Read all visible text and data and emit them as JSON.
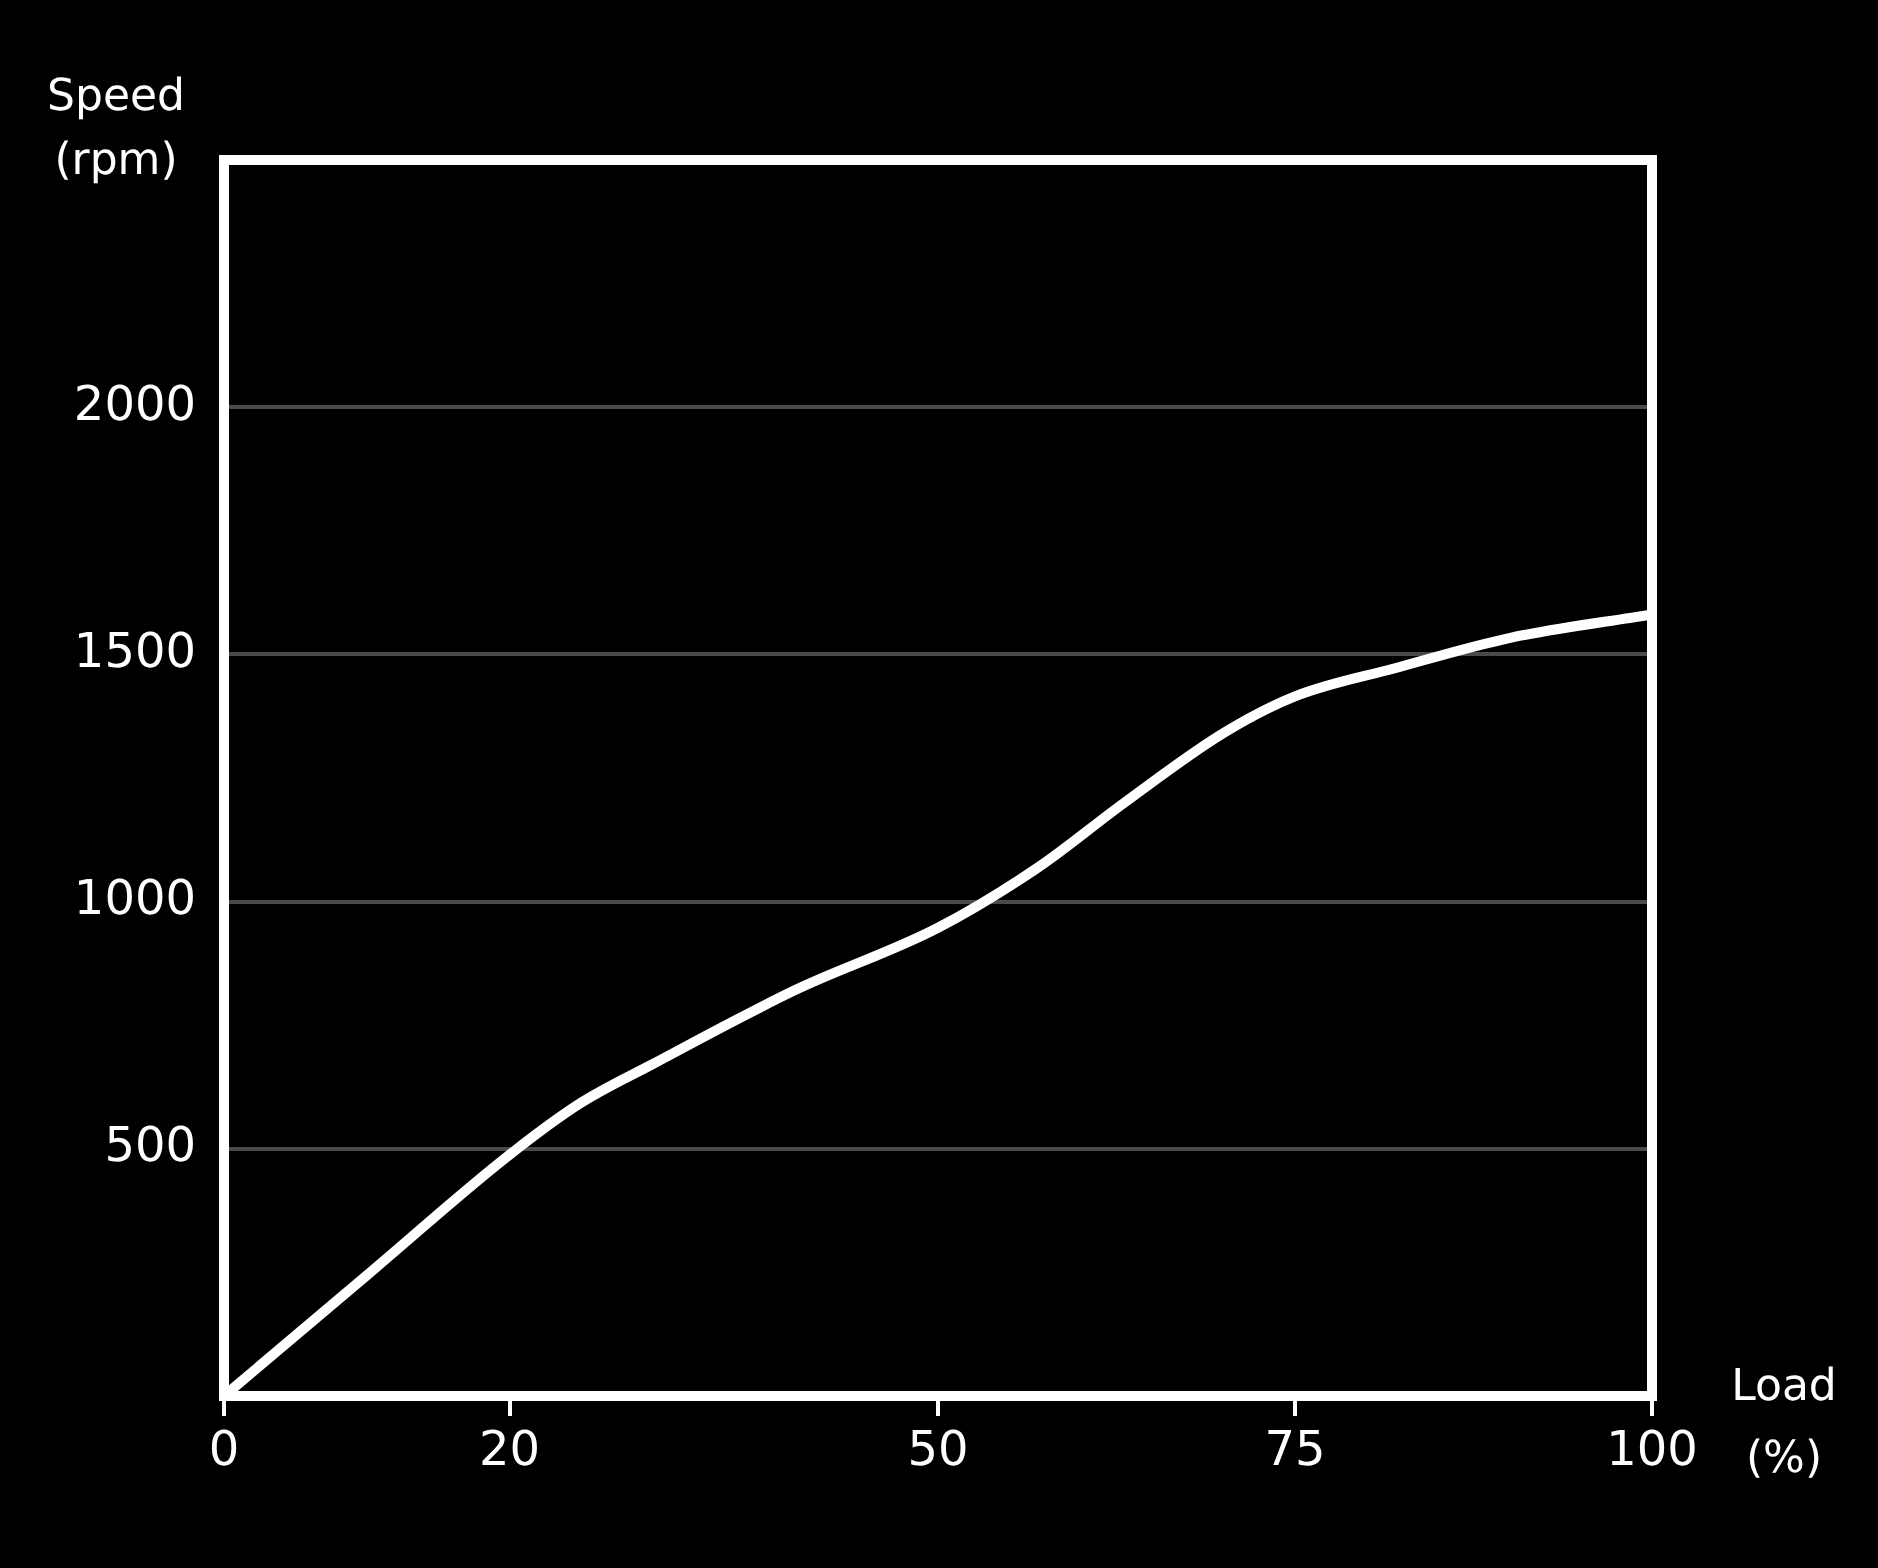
{
  "chart_data": {
    "type": "line",
    "xlabel": "Load (%)",
    "ylabel": "Speed (rpm)",
    "x": [
      0,
      10,
      20,
      25,
      30,
      40,
      50,
      57,
      63,
      70,
      75,
      82,
      90,
      100
    ],
    "series": [
      {
        "color": "#ffffff",
        "values": [
          0,
          244,
          488,
          593,
          671,
          821,
          947,
          1069,
          1199,
          1341,
          1415,
          1472,
          1533,
          1581
        ]
      }
    ],
    "xlim": [
      0,
      100
    ],
    "xticks": [
      0,
      20,
      50,
      75,
      100
    ],
    "ylim": [
      0,
      2500
    ],
    "yticks": [
      500,
      1000,
      1500,
      2000
    ],
    "grid": "y",
    "legend": false,
    "marker": "none",
    "line_style": "solid"
  }
}
